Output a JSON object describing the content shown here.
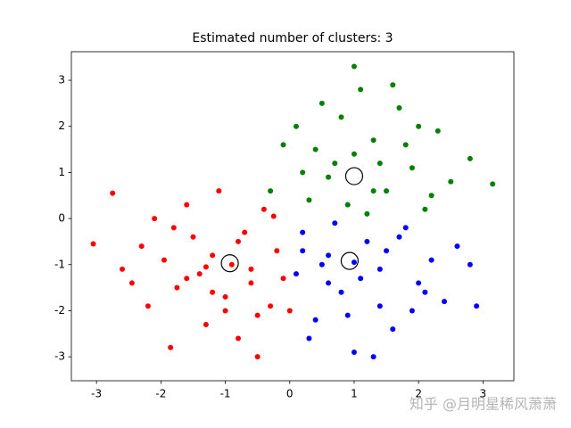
{
  "chart_data": {
    "type": "scatter",
    "title": "Estimated number of clusters: 3",
    "xlim": [
      -3.39,
      3.48
    ],
    "ylim": [
      -3.52,
      3.62
    ],
    "xticks": [
      -3,
      -2,
      -1,
      0,
      1,
      2,
      3
    ],
    "yticks": [
      -3,
      -2,
      -1,
      0,
      1,
      2,
      3
    ],
    "watermark": "知乎 @月明星稀风萧萧",
    "series": [
      {
        "color": "#ff0000",
        "x": [
          -3.05,
          -2.75,
          -2.6,
          -2.45,
          -2.3,
          -2.2,
          -2.1,
          -1.95,
          -1.85,
          -1.75,
          -1.6,
          -1.5,
          -1.4,
          -1.3,
          -1.2,
          -1.1,
          -1.0,
          -0.9,
          -0.8,
          -0.7,
          -0.6,
          -0.5,
          -0.4,
          -0.3,
          -0.2,
          -0.1,
          0.0,
          -1.3,
          -0.8,
          -1.6,
          -0.5,
          -1.0,
          -1.8,
          -0.25,
          -1.2,
          -0.6
        ],
        "y": [
          -0.55,
          0.55,
          -1.1,
          -1.4,
          -0.6,
          -1.9,
          0.0,
          -0.9,
          -2.8,
          -1.5,
          0.3,
          -0.4,
          -1.2,
          -2.3,
          -0.8,
          0.6,
          -1.7,
          -1.0,
          -2.6,
          -0.3,
          -1.4,
          -3.0,
          0.2,
          -1.9,
          -0.7,
          -1.3,
          -2.0,
          -1.05,
          -0.5,
          -1.3,
          -2.1,
          -2.0,
          -0.2,
          0.05,
          -1.6,
          -1.1
        ]
      },
      {
        "color": "#008000",
        "x": [
          -0.3,
          -0.1,
          0.1,
          0.3,
          0.5,
          0.7,
          0.9,
          1.1,
          1.3,
          1.5,
          1.7,
          1.9,
          2.1,
          2.3,
          2.5,
          2.8,
          3.15,
          1.0,
          0.6,
          1.4,
          0.2,
          1.8,
          2.2,
          0.8,
          1.2,
          1.6,
          0.4,
          2.0,
          1.0,
          1.3
        ],
        "y": [
          0.6,
          1.6,
          2.0,
          0.4,
          2.5,
          1.2,
          0.3,
          2.8,
          1.7,
          0.6,
          2.4,
          1.1,
          0.2,
          1.9,
          0.8,
          1.3,
          0.75,
          3.3,
          0.9,
          1.2,
          1.0,
          1.6,
          0.5,
          2.2,
          0.1,
          2.9,
          1.5,
          2.0,
          1.4,
          0.6
        ]
      },
      {
        "color": "#0000ff",
        "x": [
          0.1,
          0.2,
          0.4,
          0.6,
          0.8,
          1.0,
          1.2,
          1.4,
          1.6,
          1.8,
          2.0,
          2.2,
          2.4,
          2.6,
          2.9,
          0.3,
          0.7,
          1.1,
          1.5,
          1.9,
          0.5,
          0.9,
          1.3,
          1.7,
          2.1,
          0.2,
          1.0,
          1.4,
          0.6,
          2.8
        ],
        "y": [
          -1.2,
          -0.3,
          -2.2,
          -0.8,
          -1.6,
          -2.9,
          -0.5,
          -1.1,
          -2.4,
          -0.2,
          -1.4,
          -0.9,
          -1.8,
          -0.6,
          -1.9,
          -2.6,
          -0.1,
          -1.3,
          -0.7,
          -2.0,
          -1.0,
          -2.1,
          -3.0,
          -0.4,
          -1.6,
          -0.7,
          -0.95,
          -1.9,
          -1.4,
          -1.0
        ]
      },
      {
        "color": "#000000",
        "marker": "open",
        "x": [
          -0.93,
          1.0,
          0.93
        ],
        "y": [
          -0.97,
          0.92,
          -0.92
        ]
      }
    ]
  }
}
